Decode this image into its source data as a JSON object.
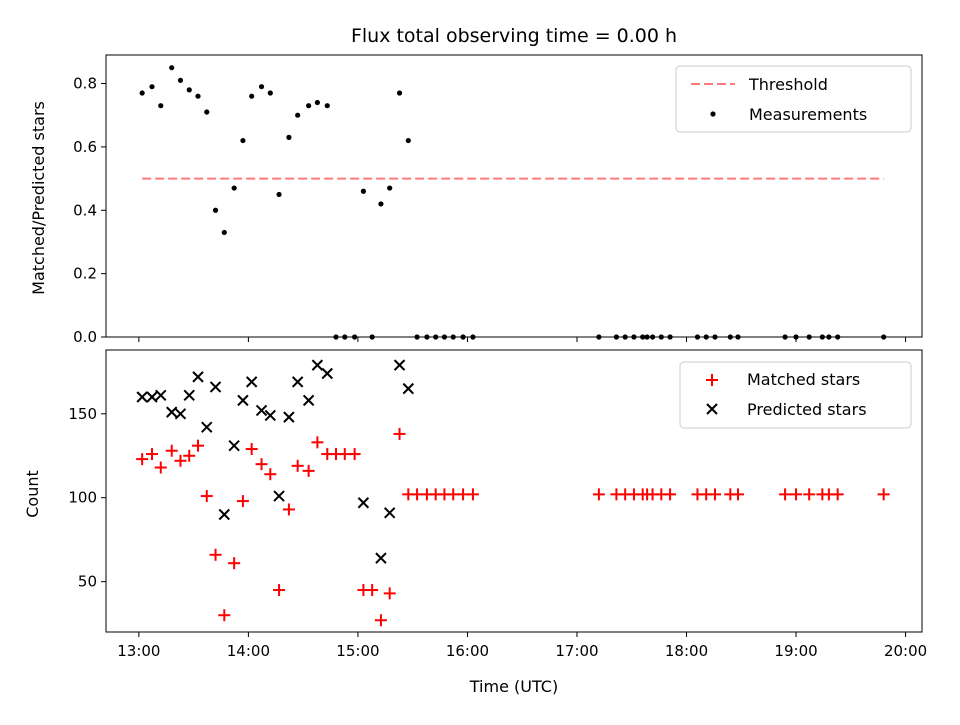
{
  "chart_data": [
    {
      "type": "scatter",
      "title": "Flux total observing time = 0.00 h",
      "xlabel": "",
      "ylabel": "Matched/Predicted stars",
      "xlim": [
        12.7,
        20.15
      ],
      "ylim": [
        0.0,
        0.89
      ],
      "yticks": [
        0.0,
        0.2,
        0.4,
        0.6,
        0.8
      ],
      "ytick_labels": [
        "0.0",
        "0.2",
        "0.4",
        "0.6",
        "0.8"
      ],
      "legend_position": "top-right",
      "legend": [
        {
          "label": "Threshold",
          "kind": "dashed-line",
          "color": "#ff7a7a"
        },
        {
          "label": "Measurements",
          "kind": "dot",
          "color": "#000000"
        }
      ],
      "threshold": {
        "name": "Threshold",
        "y": 0.5,
        "x_start": 13.03,
        "x_end": 19.8,
        "color": "#ff7a7a"
      },
      "series": [
        {
          "name": "Measurements",
          "marker": "dot",
          "color": "#000000",
          "points": [
            [
              13.03,
              0.77
            ],
            [
              13.12,
              0.79
            ],
            [
              13.2,
              0.73
            ],
            [
              13.3,
              0.85
            ],
            [
              13.38,
              0.81
            ],
            [
              13.46,
              0.78
            ],
            [
              13.54,
              0.76
            ],
            [
              13.62,
              0.71
            ],
            [
              13.7,
              0.4
            ],
            [
              13.78,
              0.33
            ],
            [
              13.87,
              0.47
            ],
            [
              13.95,
              0.62
            ],
            [
              14.03,
              0.76
            ],
            [
              14.12,
              0.79
            ],
            [
              14.2,
              0.77
            ],
            [
              14.28,
              0.45
            ],
            [
              14.37,
              0.63
            ],
            [
              14.45,
              0.7
            ],
            [
              14.55,
              0.73
            ],
            [
              14.63,
              0.74
            ],
            [
              14.72,
              0.73
            ],
            [
              14.8,
              0.0
            ],
            [
              14.88,
              0.0
            ],
            [
              14.97,
              0.0
            ],
            [
              15.05,
              0.46
            ],
            [
              15.13,
              0.0
            ],
            [
              15.21,
              0.42
            ],
            [
              15.29,
              0.47
            ],
            [
              15.38,
              0.77
            ],
            [
              15.46,
              0.62
            ],
            [
              15.54,
              0.0
            ],
            [
              15.63,
              0.0
            ],
            [
              15.71,
              0.0
            ],
            [
              15.79,
              0.0
            ],
            [
              15.87,
              0.0
            ],
            [
              15.96,
              0.0
            ],
            [
              16.05,
              0.0
            ],
            [
              17.2,
              0.0
            ],
            [
              17.36,
              0.0
            ],
            [
              17.44,
              0.0
            ],
            [
              17.52,
              0.0
            ],
            [
              17.6,
              0.0
            ],
            [
              17.64,
              0.0
            ],
            [
              17.69,
              0.0
            ],
            [
              17.77,
              0.0
            ],
            [
              17.85,
              0.0
            ],
            [
              18.1,
              0.0
            ],
            [
              18.18,
              0.0
            ],
            [
              18.26,
              0.0
            ],
            [
              18.4,
              0.0
            ],
            [
              18.47,
              0.0
            ],
            [
              18.9,
              0.0
            ],
            [
              19.0,
              0.0
            ],
            [
              19.12,
              0.0
            ],
            [
              19.24,
              0.0
            ],
            [
              19.3,
              0.0
            ],
            [
              19.38,
              0.0
            ],
            [
              19.8,
              0.0
            ]
          ]
        }
      ]
    },
    {
      "type": "scatter",
      "title": "",
      "xlabel": "Time (UTC)",
      "ylabel": "Count",
      "xlim": [
        12.7,
        20.15
      ],
      "ylim": [
        20,
        188
      ],
      "yticks": [
        50,
        100,
        150
      ],
      "ytick_labels": [
        "50",
        "100",
        "150"
      ],
      "xticks": [
        13,
        14,
        15,
        16,
        17,
        18,
        19,
        20
      ],
      "xtick_labels": [
        "13:00",
        "14:00",
        "15:00",
        "16:00",
        "17:00",
        "18:00",
        "19:00",
        "20:00"
      ],
      "legend_position": "top-right",
      "legend": [
        {
          "label": "Matched stars",
          "kind": "plus",
          "color": "#ff0000"
        },
        {
          "label": "Predicted stars",
          "kind": "x",
          "color": "#000000"
        }
      ],
      "series": [
        {
          "name": "Matched stars",
          "marker": "plus",
          "color": "#ff0000",
          "points": [
            [
              13.03,
              123
            ],
            [
              13.12,
              126
            ],
            [
              13.2,
              118
            ],
            [
              13.3,
              128
            ],
            [
              13.38,
              122
            ],
            [
              13.46,
              125
            ],
            [
              13.54,
              131
            ],
            [
              13.62,
              101
            ],
            [
              13.7,
              66
            ],
            [
              13.78,
              30
            ],
            [
              13.87,
              61
            ],
            [
              13.95,
              98
            ],
            [
              14.03,
              129
            ],
            [
              14.12,
              120
            ],
            [
              14.2,
              114
            ],
            [
              14.28,
              45
            ],
            [
              14.37,
              93
            ],
            [
              14.45,
              119
            ],
            [
              14.55,
              116
            ],
            [
              14.63,
              133
            ],
            [
              14.72,
              126
            ],
            [
              14.8,
              126
            ],
            [
              14.88,
              126
            ],
            [
              14.97,
              126
            ],
            [
              15.05,
              45
            ],
            [
              15.13,
              45
            ],
            [
              15.21,
              27
            ],
            [
              15.29,
              43
            ],
            [
              15.38,
              138
            ],
            [
              15.46,
              102
            ],
            [
              15.54,
              102
            ],
            [
              15.63,
              102
            ],
            [
              15.71,
              102
            ],
            [
              15.79,
              102
            ],
            [
              15.87,
              102
            ],
            [
              15.96,
              102
            ],
            [
              16.05,
              102
            ],
            [
              17.2,
              102
            ],
            [
              17.36,
              102
            ],
            [
              17.44,
              102
            ],
            [
              17.52,
              102
            ],
            [
              17.6,
              102
            ],
            [
              17.64,
              102
            ],
            [
              17.69,
              102
            ],
            [
              17.77,
              102
            ],
            [
              17.85,
              102
            ],
            [
              18.1,
              102
            ],
            [
              18.18,
              102
            ],
            [
              18.26,
              102
            ],
            [
              18.4,
              102
            ],
            [
              18.47,
              102
            ],
            [
              18.9,
              102
            ],
            [
              19.0,
              102
            ],
            [
              19.12,
              102
            ],
            [
              19.24,
              102
            ],
            [
              19.3,
              102
            ],
            [
              19.38,
              102
            ],
            [
              19.8,
              102
            ]
          ]
        },
        {
          "name": "Predicted stars",
          "marker": "x",
          "color": "#000000",
          "points": [
            [
              13.03,
              160
            ],
            [
              13.12,
              160
            ],
            [
              13.2,
              161
            ],
            [
              13.3,
              151
            ],
            [
              13.38,
              150
            ],
            [
              13.46,
              161
            ],
            [
              13.54,
              172
            ],
            [
              13.62,
              142
            ],
            [
              13.7,
              166
            ],
            [
              13.78,
              90
            ],
            [
              13.87,
              131
            ],
            [
              13.95,
              158
            ],
            [
              14.03,
              169
            ],
            [
              14.12,
              152
            ],
            [
              14.2,
              149
            ],
            [
              14.28,
              101
            ],
            [
              14.37,
              148
            ],
            [
              14.45,
              169
            ],
            [
              14.55,
              158
            ],
            [
              14.63,
              179
            ],
            [
              14.72,
              174
            ],
            [
              15.05,
              97
            ],
            [
              15.21,
              64
            ],
            [
              15.29,
              91
            ],
            [
              15.38,
              179
            ],
            [
              15.46,
              165
            ]
          ]
        }
      ]
    }
  ]
}
